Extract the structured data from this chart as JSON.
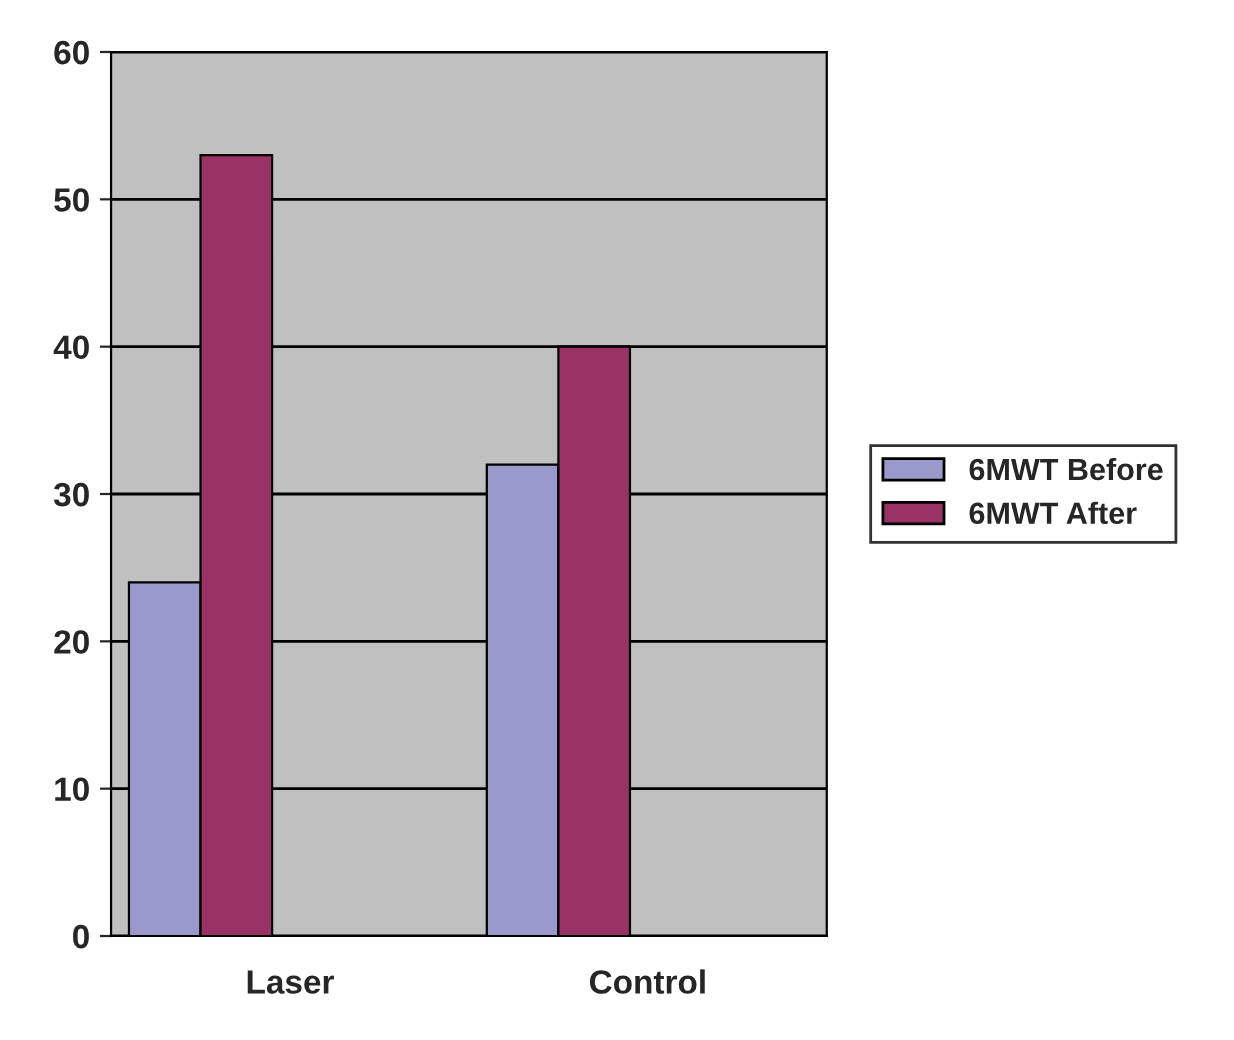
{
  "chart_data": {
    "type": "bar",
    "categories": [
      "Laser",
      "Control"
    ],
    "series": [
      {
        "name": "6MWT Before",
        "color": "#9999cc",
        "values": [
          24,
          32
        ]
      },
      {
        "name": "6MWT After",
        "color": "#993366",
        "values": [
          53,
          40
        ]
      }
    ],
    "ylim": [
      0,
      60
    ],
    "yticks": [
      0,
      10,
      20,
      30,
      40,
      50,
      60
    ],
    "grid": "y",
    "legend": "right"
  }
}
